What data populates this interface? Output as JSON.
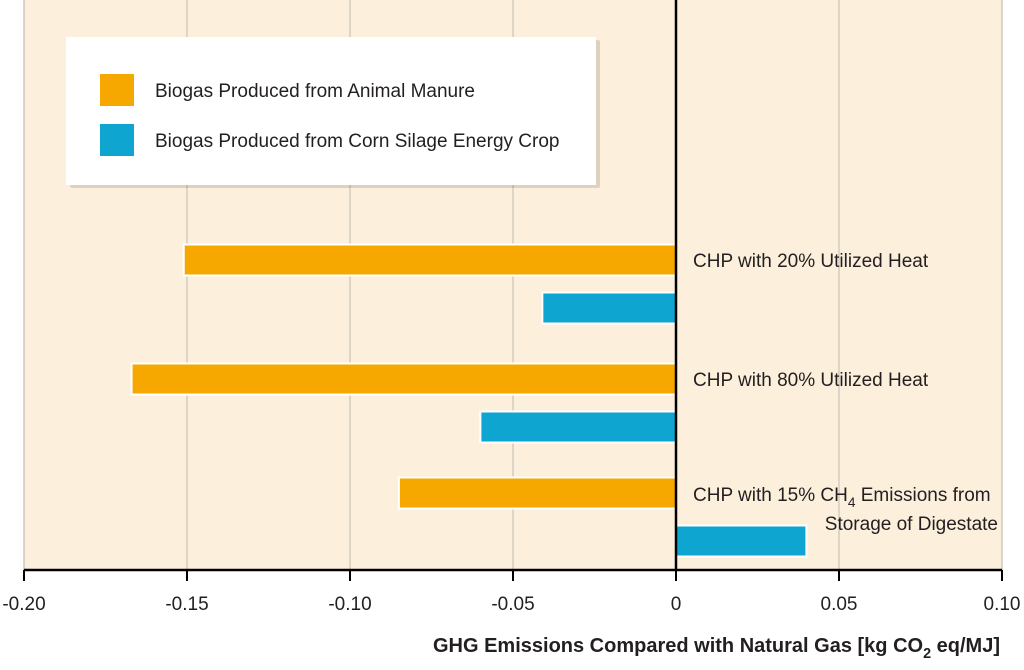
{
  "chart_data": {
    "type": "bar",
    "orientation": "horizontal",
    "xlim": [
      -0.2,
      0.1
    ],
    "xticks": [
      -0.2,
      -0.15,
      -0.1,
      -0.05,
      0,
      0.05,
      0.1
    ],
    "xtick_labels": [
      "-0.20",
      "-0.15",
      "-0.10",
      "-0.05",
      "0",
      "0.05",
      "0.10"
    ],
    "xlabel": {
      "before": "GHG Emissions Compared with Natural Gas [kg CO",
      "sub": "2",
      "after": " eq/MJ]"
    },
    "grid": "vertical",
    "legend_placement": "top-left",
    "background_color": "#fcf0dc",
    "categories": [
      {
        "label_lines": [
          {
            "before": "CHP with 20% Utilized Heat"
          }
        ]
      },
      {
        "label_lines": [
          {
            "before": "CHP with 80% Utilized Heat"
          }
        ]
      },
      {
        "label_lines": [
          {
            "before": "CHP with 15% CH",
            "sub": "4",
            "after": " Emissions from"
          },
          {
            "before": "Storage of Digestate"
          }
        ]
      }
    ],
    "series": [
      {
        "name": "Biogas Produced from Animal Manure",
        "color": "#f7a800",
        "values": [
          -0.151,
          -0.167,
          -0.085
        ]
      },
      {
        "name": "Biogas Produced from Corn Silage Energy Crop",
        "color": "#0ea5d1",
        "values": [
          -0.041,
          -0.06,
          0.04
        ]
      }
    ]
  }
}
